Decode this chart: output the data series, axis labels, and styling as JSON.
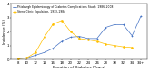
{
  "blue_x_num": [
    8,
    10,
    12,
    14,
    16,
    18,
    20,
    22,
    24,
    26,
    28,
    30,
    32,
    34,
    36
  ],
  "blue_y": [
    0.05,
    0.1,
    0.3,
    0.5,
    0.8,
    1.3,
    1.6,
    1.65,
    1.5,
    1.5,
    2.3,
    2.5,
    2.5,
    1.7,
    3.1
  ],
  "yellow_x_num": [
    8,
    10,
    12,
    14,
    16,
    18,
    20,
    22,
    24,
    26,
    28,
    30,
    32,
    34
  ],
  "yellow_y": [
    0.05,
    0.1,
    0.5,
    1.6,
    2.55,
    2.8,
    2.0,
    1.5,
    1.4,
    1.3,
    1.1,
    1.0,
    0.9,
    0.85
  ],
  "blue_color": "#4472C4",
  "yellow_color": "#FFC000",
  "blue_label": "Pittsburgh Epidemiology of Diabetes Complications Study, 1986–2008",
  "yellow_label": "Steno Clinic Population, 1933–1984",
  "xlabel": "Duration of Diabetes (Years)",
  "ylabel": "Incidence (%)",
  "ylim": [
    0,
    4.0
  ],
  "xlim": [
    6.5,
    37.5
  ],
  "xtick_labels": [
    "8",
    "10",
    "12",
    "14",
    "16",
    "18",
    "20",
    "22",
    "24",
    "26",
    "28",
    "30",
    "32",
    "34",
    "34+"
  ],
  "xtick_pos": [
    8,
    10,
    12,
    14,
    16,
    18,
    20,
    22,
    24,
    26,
    28,
    30,
    32,
    34,
    36
  ],
  "ytick_vals": [
    0,
    1,
    2,
    3,
    4
  ],
  "background_color": "#FFFFFF"
}
